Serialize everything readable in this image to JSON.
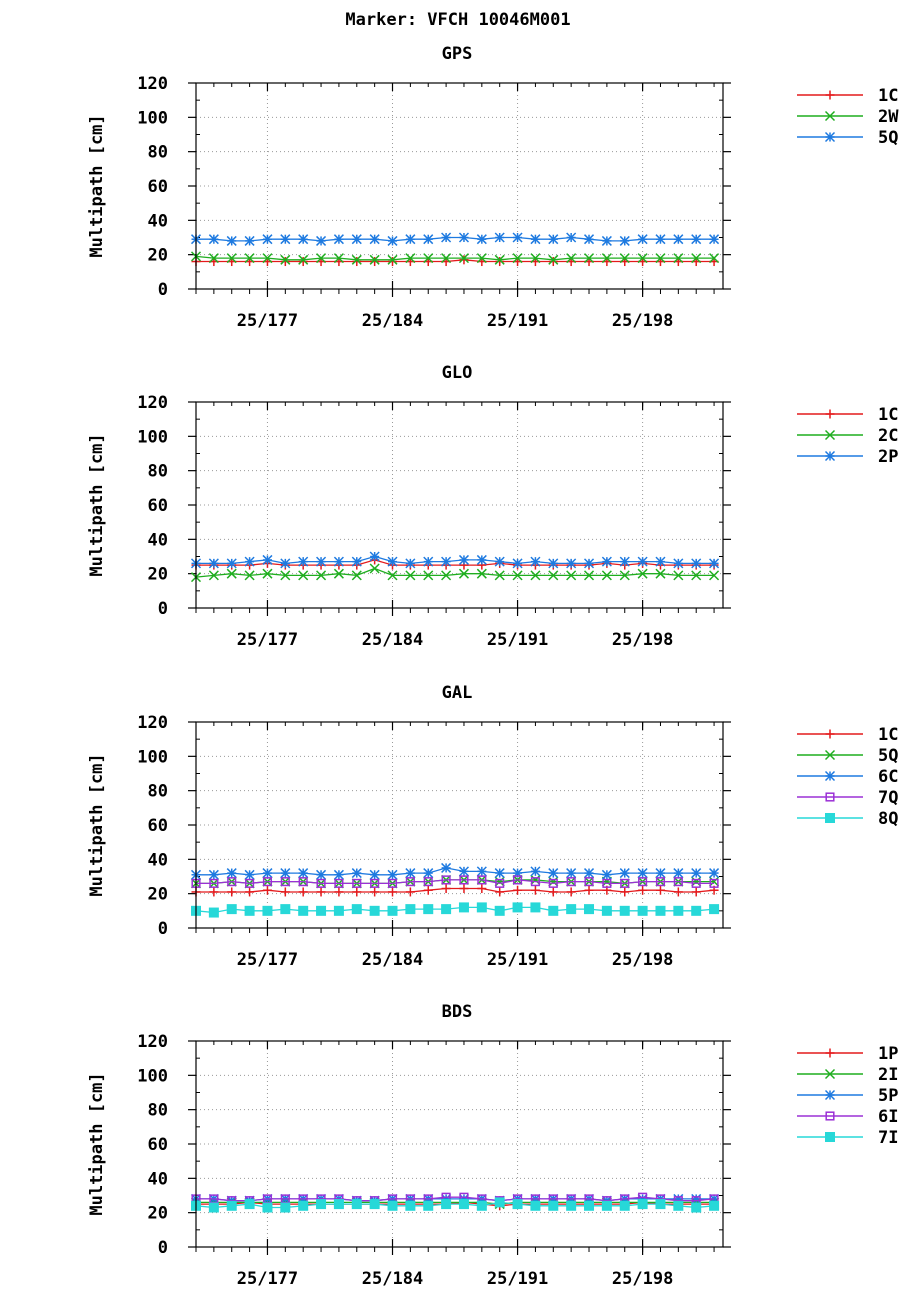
{
  "title": "Marker: VFCH 10046M001",
  "colors": {
    "1C": "#e41a1c",
    "2W": "#1fae1f",
    "5Q_gps": "#1e7ae0"
  },
  "x_ticks": [
    {
      "label": "25/177",
      "day": 177
    },
    {
      "label": "25/184",
      "day": 184
    },
    {
      "label": "25/191",
      "day": 191
    },
    {
      "label": "25/198",
      "day": 198
    }
  ],
  "chart_data": [
    {
      "type": "line",
      "title": "GPS",
      "ylabel": "Multipath [cm]",
      "ylim": [
        0,
        120
      ],
      "yticks": [
        "0",
        "20",
        "40",
        "60",
        "80",
        "100",
        "120"
      ],
      "xlim": [
        173,
        202.5
      ],
      "x": [
        173,
        174,
        175,
        176,
        177,
        178,
        179,
        180,
        181,
        182,
        183,
        184,
        185,
        186,
        187,
        188,
        189,
        190,
        191,
        192,
        193,
        194,
        195,
        196,
        197,
        198,
        199,
        200,
        201,
        202
      ],
      "grid": true,
      "legend": "top-right-outside",
      "series": [
        {
          "name": "1C",
          "color": "#e41a1c",
          "marker": "plus",
          "values": [
            16,
            16,
            16,
            16,
            16,
            16,
            16,
            16,
            16,
            16,
            16,
            16,
            16,
            16,
            16,
            17,
            16,
            16,
            16,
            16,
            16,
            16,
            16,
            16,
            16,
            16,
            16,
            16,
            16,
            16
          ]
        },
        {
          "name": "2W",
          "color": "#1fae1f",
          "marker": "x",
          "values": [
            19,
            18,
            18,
            18,
            18,
            17,
            17,
            18,
            18,
            17,
            17,
            17,
            18,
            18,
            18,
            18,
            18,
            17,
            18,
            18,
            17,
            18,
            18,
            18,
            18,
            18,
            18,
            18,
            18,
            18
          ]
        },
        {
          "name": "5Q",
          "color": "#1e7ae0",
          "marker": "star",
          "values": [
            29,
            29,
            28,
            28,
            29,
            29,
            29,
            28,
            29,
            29,
            29,
            28,
            29,
            29,
            30,
            30,
            29,
            30,
            30,
            29,
            29,
            30,
            29,
            28,
            28,
            29,
            29,
            29,
            29,
            29
          ]
        }
      ]
    },
    {
      "type": "line",
      "title": "GLO",
      "ylabel": "Multipath [cm]",
      "ylim": [
        0,
        120
      ],
      "yticks": [
        "0",
        "20",
        "40",
        "60",
        "80",
        "100",
        "120"
      ],
      "xlim": [
        173,
        202.5
      ],
      "x": [
        173,
        174,
        175,
        176,
        177,
        178,
        179,
        180,
        181,
        182,
        183,
        184,
        185,
        186,
        187,
        188,
        189,
        190,
        191,
        192,
        193,
        194,
        195,
        196,
        197,
        198,
        199,
        200,
        201,
        202
      ],
      "grid": true,
      "legend": "top-right-outside",
      "series": [
        {
          "name": "1C",
          "color": "#e41a1c",
          "marker": "plus",
          "values": [
            25,
            25,
            25,
            25,
            26,
            25,
            25,
            25,
            25,
            25,
            28,
            25,
            25,
            25,
            25,
            25,
            25,
            26,
            25,
            25,
            25,
            25,
            25,
            26,
            25,
            26,
            25,
            25,
            25,
            25
          ]
        },
        {
          "name": "2C",
          "color": "#1fae1f",
          "marker": "x",
          "values": [
            18,
            19,
            20,
            19,
            20,
            19,
            19,
            19,
            20,
            19,
            23,
            19,
            19,
            19,
            19,
            20,
            20,
            19,
            19,
            19,
            19,
            19,
            19,
            19,
            19,
            20,
            20,
            19,
            19,
            19
          ]
        },
        {
          "name": "2P",
          "color": "#1e7ae0",
          "marker": "star",
          "values": [
            26,
            26,
            26,
            27,
            28,
            26,
            27,
            27,
            27,
            27,
            30,
            27,
            26,
            27,
            27,
            28,
            28,
            27,
            26,
            27,
            26,
            26,
            26,
            27,
            27,
            27,
            27,
            26,
            26,
            26
          ]
        }
      ]
    },
    {
      "type": "line",
      "title": "GAL",
      "ylabel": "Multipath [cm]",
      "ylim": [
        0,
        120
      ],
      "yticks": [
        "0",
        "20",
        "40",
        "60",
        "80",
        "100",
        "120"
      ],
      "xlim": [
        173,
        202.5
      ],
      "x": [
        173,
        174,
        175,
        176,
        177,
        178,
        179,
        180,
        181,
        182,
        183,
        184,
        185,
        186,
        187,
        188,
        189,
        190,
        191,
        192,
        193,
        194,
        195,
        196,
        197,
        198,
        199,
        200,
        201,
        202
      ],
      "grid": true,
      "legend": "top-right-outside",
      "series": [
        {
          "name": "1C",
          "color": "#e41a1c",
          "marker": "plus",
          "values": [
            21,
            21,
            21,
            21,
            22,
            21,
            21,
            21,
            21,
            21,
            21,
            21,
            21,
            22,
            23,
            23,
            23,
            21,
            22,
            22,
            21,
            21,
            22,
            22,
            21,
            22,
            22,
            21,
            21,
            22
          ]
        },
        {
          "name": "5Q",
          "color": "#1fae1f",
          "marker": "x",
          "values": [
            26,
            26,
            27,
            26,
            27,
            27,
            27,
            26,
            26,
            26,
            26,
            26,
            27,
            27,
            28,
            28,
            28,
            27,
            28,
            28,
            27,
            27,
            27,
            27,
            26,
            27,
            27,
            27,
            27,
            27
          ]
        },
        {
          "name": "6C",
          "color": "#1e7ae0",
          "marker": "star",
          "values": [
            31,
            31,
            32,
            31,
            32,
            32,
            32,
            31,
            31,
            32,
            31,
            31,
            32,
            32,
            35,
            33,
            33,
            32,
            32,
            33,
            32,
            32,
            32,
            31,
            32,
            32,
            32,
            32,
            32,
            32
          ]
        },
        {
          "name": "7Q",
          "color": "#9b30d6",
          "marker": "square",
          "values": [
            26,
            26,
            27,
            26,
            27,
            27,
            27,
            26,
            26,
            26,
            26,
            26,
            27,
            27,
            28,
            28,
            28,
            26,
            28,
            27,
            26,
            27,
            27,
            26,
            26,
            27,
            27,
            27,
            26,
            26
          ]
        },
        {
          "name": "8Q",
          "color": "#27d8d8",
          "marker": "filledsquare",
          "values": [
            10,
            9,
            11,
            10,
            10,
            11,
            10,
            10,
            10,
            11,
            10,
            10,
            11,
            11,
            11,
            12,
            12,
            10,
            12,
            12,
            10,
            11,
            11,
            10,
            10,
            10,
            10,
            10,
            10,
            11
          ]
        }
      ]
    },
    {
      "type": "line",
      "title": "BDS",
      "ylabel": "Multipath [cm]",
      "ylim": [
        0,
        120
      ],
      "yticks": [
        "0",
        "20",
        "40",
        "60",
        "80",
        "100",
        "120"
      ],
      "xlim": [
        173,
        202.5
      ],
      "x": [
        173,
        174,
        175,
        176,
        177,
        178,
        179,
        180,
        181,
        182,
        183,
        184,
        185,
        186,
        187,
        188,
        189,
        190,
        191,
        192,
        193,
        194,
        195,
        196,
        197,
        198,
        199,
        200,
        201,
        202
      ],
      "grid": true,
      "legend": "top-right-outside",
      "series": [
        {
          "name": "1P",
          "color": "#e41a1c",
          "marker": "plus",
          "values": [
            25,
            25,
            25,
            26,
            25,
            25,
            25,
            25,
            25,
            25,
            25,
            25,
            25,
            25,
            25,
            26,
            25,
            24,
            25,
            25,
            25,
            25,
            25,
            25,
            25,
            26,
            25,
            25,
            25,
            25
          ]
        },
        {
          "name": "2I",
          "color": "#1fae1f",
          "marker": "x",
          "values": [
            26,
            26,
            26,
            26,
            26,
            26,
            26,
            26,
            26,
            26,
            26,
            26,
            26,
            26,
            26,
            26,
            26,
            25,
            26,
            26,
            26,
            26,
            26,
            26,
            26,
            26,
            26,
            26,
            26,
            26
          ]
        },
        {
          "name": "5P",
          "color": "#1e7ae0",
          "marker": "star",
          "values": [
            28,
            28,
            27,
            27,
            28,
            28,
            28,
            28,
            28,
            27,
            27,
            28,
            28,
            28,
            28,
            28,
            28,
            27,
            28,
            28,
            28,
            28,
            28,
            27,
            28,
            28,
            28,
            28,
            28,
            28
          ]
        },
        {
          "name": "6I",
          "color": "#9b30d6",
          "marker": "square",
          "values": [
            28,
            28,
            27,
            27,
            28,
            28,
            28,
            28,
            28,
            27,
            27,
            28,
            28,
            28,
            29,
            29,
            28,
            27,
            28,
            28,
            28,
            28,
            28,
            27,
            28,
            29,
            28,
            27,
            27,
            28
          ]
        },
        {
          "name": "7I",
          "color": "#27d8d8",
          "marker": "filledsquare",
          "values": [
            24,
            23,
            24,
            25,
            23,
            23,
            24,
            25,
            25,
            25,
            25,
            24,
            24,
            24,
            25,
            25,
            24,
            26,
            25,
            24,
            24,
            24,
            24,
            24,
            24,
            25,
            25,
            24,
            23,
            24
          ]
        }
      ]
    }
  ]
}
